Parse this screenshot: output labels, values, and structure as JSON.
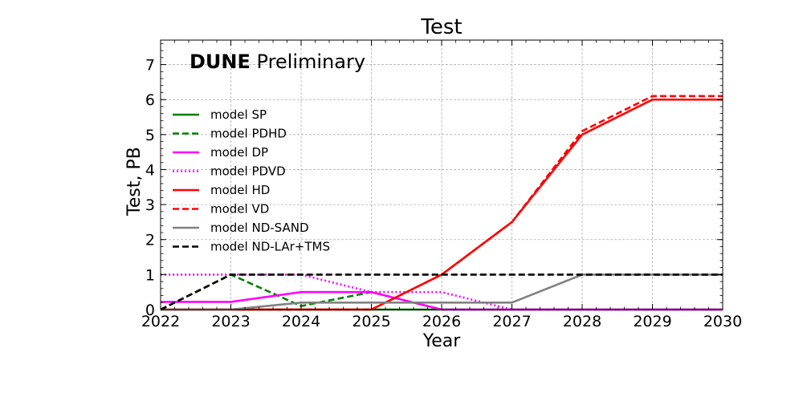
{
  "chart_data": {
    "type": "line",
    "title": "Test",
    "xlabel": "Year",
    "ylabel": "Test, PB",
    "xlim": [
      2022,
      2030
    ],
    "ylim": [
      0,
      7.7
    ],
    "xticks": [
      "2022",
      "2023",
      "2024",
      "2025",
      "2026",
      "2027",
      "2028",
      "2029",
      "2030"
    ],
    "yticks": [
      "0",
      "1",
      "2",
      "3",
      "4",
      "5",
      "6",
      "7"
    ],
    "grid": true,
    "legend_position": "left",
    "brand": {
      "bold": "DUNE",
      "rest": " Preliminary"
    },
    "x": [
      2022,
      2023,
      2024,
      2025,
      2026,
      2027,
      2028,
      2029,
      2030
    ],
    "series": [
      {
        "name": "model SP",
        "values": [
          0,
          0,
          0,
          0,
          0,
          0,
          0,
          0,
          0
        ],
        "color": "#008000",
        "style": "solid"
      },
      {
        "name": "model PDHD",
        "values": [
          0,
          1.0,
          0.1,
          0.5,
          0,
          0,
          0,
          0,
          0
        ],
        "color": "#008000",
        "style": "dashed"
      },
      {
        "name": "model DP",
        "values": [
          0.22,
          0.22,
          0.5,
          0.5,
          0,
          0,
          0,
          0,
          0
        ],
        "color": "#ff00ff",
        "style": "solid"
      },
      {
        "name": "model PDVD",
        "values": [
          1.0,
          1.0,
          1.0,
          0.5,
          0.5,
          0,
          0,
          0,
          0
        ],
        "color": "#ff00ff",
        "style": "dotted"
      },
      {
        "name": "model HD",
        "values": [
          0,
          0,
          0,
          0,
          1.0,
          2.5,
          5.0,
          6.0,
          6.0
        ],
        "color": "#ff0000",
        "style": "solid"
      },
      {
        "name": "model VD",
        "values": [
          0,
          0,
          0,
          0,
          1.0,
          2.5,
          5.1,
          6.1,
          6.1
        ],
        "color": "#ff0000",
        "style": "dashed"
      },
      {
        "name": "model ND-SAND",
        "values": [
          0,
          0,
          0.2,
          0.2,
          0.2,
          0.2,
          1.0,
          1.0,
          1.0
        ],
        "color": "#808080",
        "style": "solid"
      },
      {
        "name": "model ND-LAr+TMS",
        "values": [
          0,
          1.0,
          1.0,
          1.0,
          1.0,
          1.0,
          1.0,
          1.0,
          1.0
        ],
        "color": "#000000",
        "style": "dashed"
      }
    ]
  }
}
